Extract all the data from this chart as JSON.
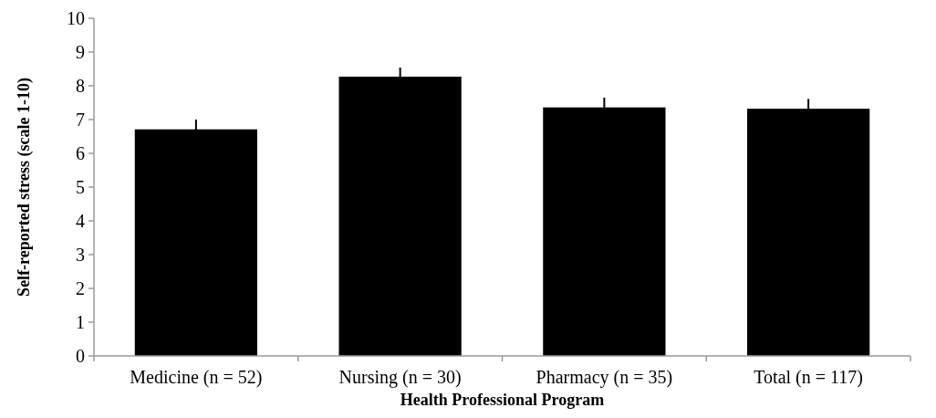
{
  "chart_data": {
    "type": "bar",
    "xlabel": "Health Professional Program",
    "ylabel": "Self-reported stress (scale 1-10)",
    "categories": [
      "Medicine (n = 52)",
      "Nursing (n = 30)",
      "Pharmacy (n = 35)",
      "Total (n = 117)"
    ],
    "values": [
      6.71,
      8.27,
      7.36,
      7.32
    ],
    "errors": [
      0.29,
      0.27,
      0.29,
      0.29
    ],
    "color": "#000000",
    "ylim": [
      0,
      10
    ],
    "yticks": [
      0,
      1,
      2,
      3,
      4,
      5,
      6,
      7,
      8,
      9,
      10
    ],
    "grid": false
  }
}
